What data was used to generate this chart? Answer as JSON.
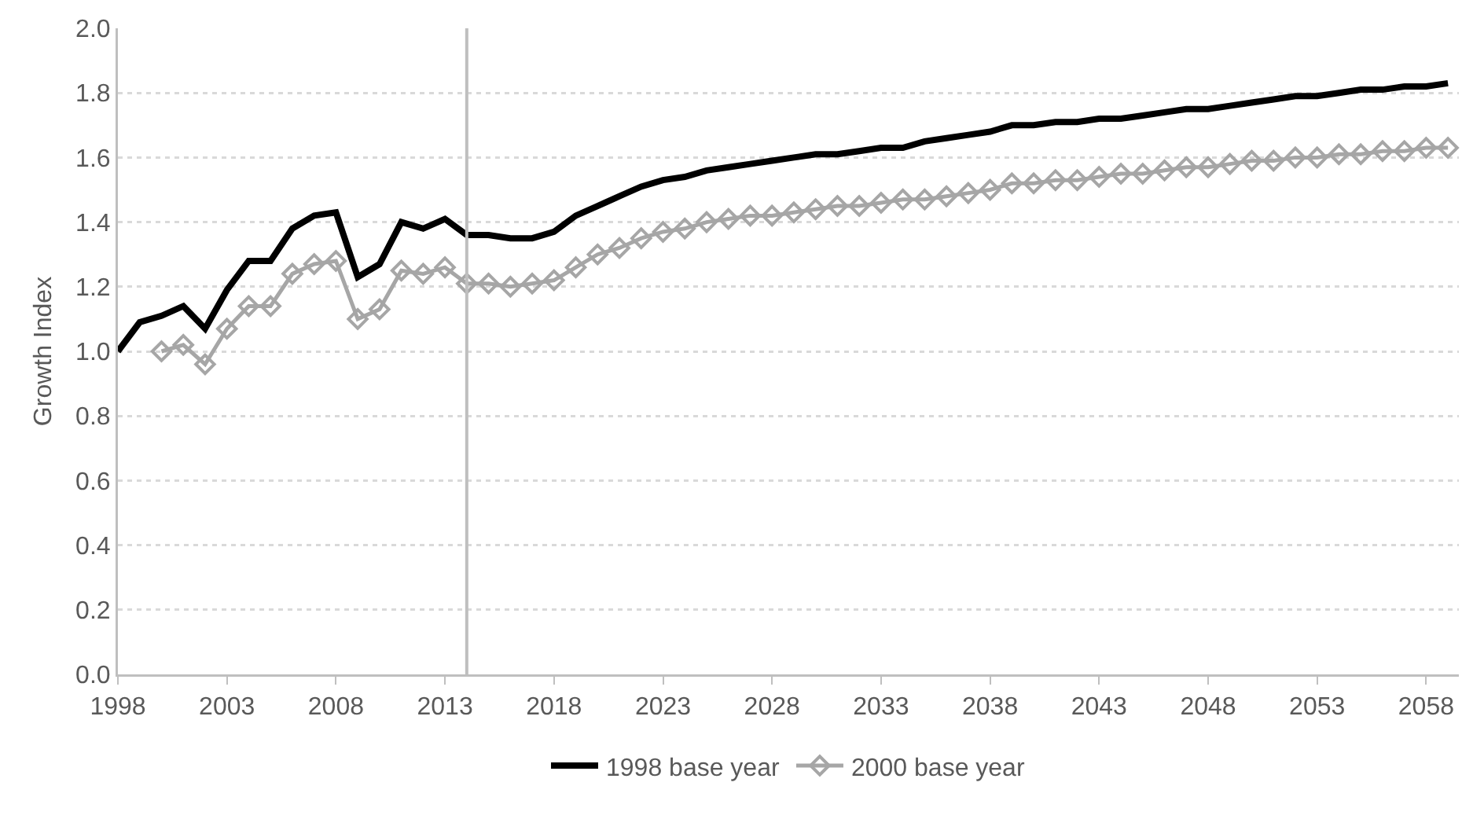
{
  "chart_data": {
    "type": "line",
    "ylabel": "Growth Index",
    "xlim": [
      1998,
      2059.5
    ],
    "xticks": [
      1998,
      2003,
      2008,
      2013,
      2018,
      2023,
      2028,
      2033,
      2038,
      2043,
      2048,
      2053,
      2058
    ],
    "ylim": [
      0,
      2
    ],
    "yticks": [
      {
        "value": 0,
        "label": "0.0"
      },
      {
        "value": 0.2,
        "label": "0.2"
      },
      {
        "value": 0.4,
        "label": "0.4"
      },
      {
        "value": 0.6,
        "label": "0.6"
      },
      {
        "value": 0.8,
        "label": "0.8"
      },
      {
        "value": 1,
        "label": "1.0"
      },
      {
        "value": 1.2,
        "label": "1.2"
      },
      {
        "value": 1.4,
        "label": "1.4"
      },
      {
        "value": 1.6,
        "label": "1.6"
      },
      {
        "value": 1.8,
        "label": "1.8"
      },
      {
        "value": 2,
        "label": "2.0"
      }
    ],
    "grid": "y",
    "legend": "bottom",
    "ref_lines": [
      {
        "axis": "x",
        "value": 2014,
        "color": "#bfbfbf"
      }
    ],
    "x": [
      1998,
      1999,
      2000,
      2001,
      2002,
      2003,
      2004,
      2005,
      2006,
      2007,
      2008,
      2009,
      2010,
      2011,
      2012,
      2013,
      2014,
      2015,
      2016,
      2017,
      2018,
      2019,
      2020,
      2021,
      2022,
      2023,
      2024,
      2025,
      2026,
      2027,
      2028,
      2029,
      2030,
      2031,
      2032,
      2033,
      2034,
      2035,
      2036,
      2037,
      2038,
      2039,
      2040,
      2041,
      2042,
      2043,
      2044,
      2045,
      2046,
      2047,
      2048,
      2049,
      2050,
      2051,
      2052,
      2053,
      2054,
      2055,
      2056,
      2057,
      2058,
      2059
    ],
    "series": [
      {
        "name": "1998 base year",
        "color": "#000000",
        "marker": "none",
        "values": [
          1.0,
          1.09,
          1.11,
          1.14,
          1.07,
          1.19,
          1.28,
          1.28,
          1.38,
          1.42,
          1.43,
          1.23,
          1.27,
          1.4,
          1.38,
          1.41,
          1.36,
          1.36,
          1.35,
          1.35,
          1.37,
          1.42,
          1.45,
          1.48,
          1.51,
          1.53,
          1.54,
          1.56,
          1.57,
          1.58,
          1.59,
          1.6,
          1.61,
          1.61,
          1.62,
          1.63,
          1.63,
          1.65,
          1.66,
          1.67,
          1.68,
          1.7,
          1.7,
          1.71,
          1.71,
          1.72,
          1.72,
          1.73,
          1.74,
          1.75,
          1.75,
          1.76,
          1.77,
          1.78,
          1.79,
          1.79,
          1.8,
          1.81,
          1.81,
          1.82,
          1.82,
          1.83
        ]
      },
      {
        "name": "2000 base year",
        "color": "#a6a6a6",
        "marker": "diamond",
        "values": [
          null,
          null,
          1.0,
          1.02,
          0.96,
          1.07,
          1.14,
          1.14,
          1.24,
          1.27,
          1.28,
          1.1,
          1.13,
          1.25,
          1.24,
          1.26,
          1.21,
          1.21,
          1.2,
          1.21,
          1.22,
          1.26,
          1.3,
          1.32,
          1.35,
          1.37,
          1.38,
          1.4,
          1.41,
          1.42,
          1.42,
          1.43,
          1.44,
          1.45,
          1.45,
          1.46,
          1.47,
          1.47,
          1.48,
          1.49,
          1.5,
          1.52,
          1.52,
          1.53,
          1.53,
          1.54,
          1.55,
          1.55,
          1.56,
          1.57,
          1.57,
          1.58,
          1.59,
          1.59,
          1.6,
          1.6,
          1.61,
          1.61,
          1.62,
          1.62,
          1.63,
          1.63
        ]
      }
    ]
  }
}
